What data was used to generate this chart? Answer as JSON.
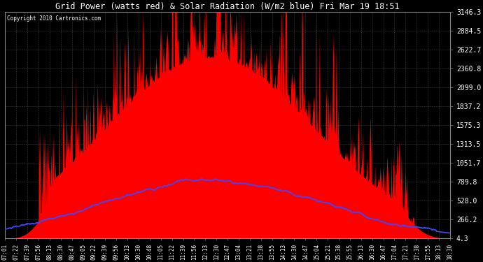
{
  "title": "Grid Power (watts red) & Solar Radiation (W/m2 blue) Fri Mar 19 18:51",
  "copyright": "Copyright 2010 Cartronics.com",
  "background_color": "#000000",
  "plot_bg_color": "#000000",
  "title_color": "#ffffff",
  "grid_color": "#555555",
  "red_color": "#ff0000",
  "blue_color": "#4444ff",
  "yticks": [
    4.3,
    266.2,
    528.0,
    789.8,
    1051.7,
    1313.5,
    1575.3,
    1837.2,
    2099.0,
    2360.8,
    2622.7,
    2884.5,
    3146.3
  ],
  "ymin": 0,
  "ymax": 3146.3,
  "xtick_labels": [
    "07:01",
    "07:22",
    "07:39",
    "07:56",
    "08:13",
    "08:30",
    "08:47",
    "09:05",
    "09:22",
    "09:39",
    "09:56",
    "10:13",
    "10:30",
    "10:48",
    "11:05",
    "11:22",
    "11:39",
    "11:56",
    "12:13",
    "12:30",
    "12:47",
    "13:04",
    "13:21",
    "13:38",
    "13:55",
    "14:13",
    "14:30",
    "14:47",
    "15:04",
    "15:21",
    "15:38",
    "15:55",
    "16:13",
    "16:30",
    "16:47",
    "17:04",
    "17:21",
    "17:38",
    "17:55",
    "18:13",
    "18:30"
  ],
  "figsize": [
    6.9,
    3.75
  ],
  "dpi": 100
}
